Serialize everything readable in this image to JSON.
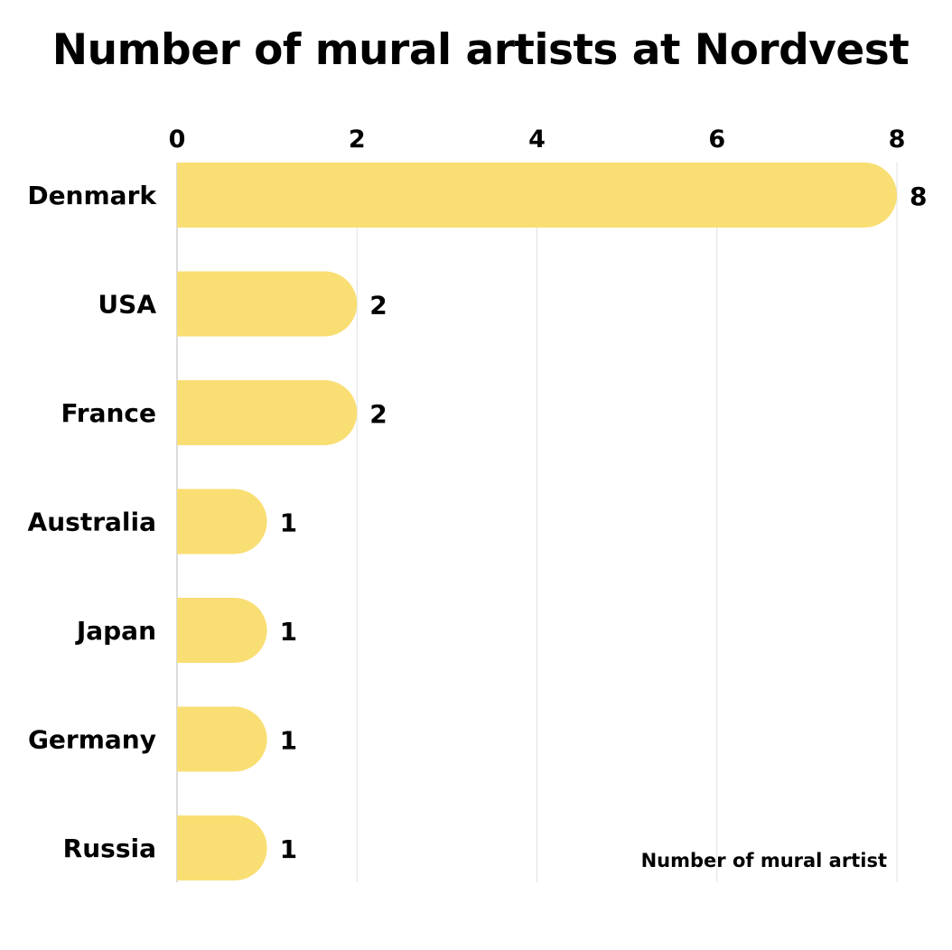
{
  "chart_data": {
    "type": "bar",
    "orientation": "horizontal",
    "title": "Number of mural artists at Nordvest",
    "categories": [
      "Denmark",
      "USA",
      "France",
      "Australia",
      "Japan",
      "Germany",
      "Russia"
    ],
    "values": [
      8,
      2,
      2,
      1,
      1,
      1,
      1
    ],
    "xlabel": "Number of mural artist",
    "ylabel": "",
    "xlim": [
      0,
      8
    ],
    "xticks": [
      0,
      2,
      4,
      6,
      8
    ],
    "tick_position": "top",
    "grid": true,
    "data_labels": true,
    "legend": "none",
    "bar_color": "#F9DE73",
    "grid_color": "#E0E0E0"
  }
}
